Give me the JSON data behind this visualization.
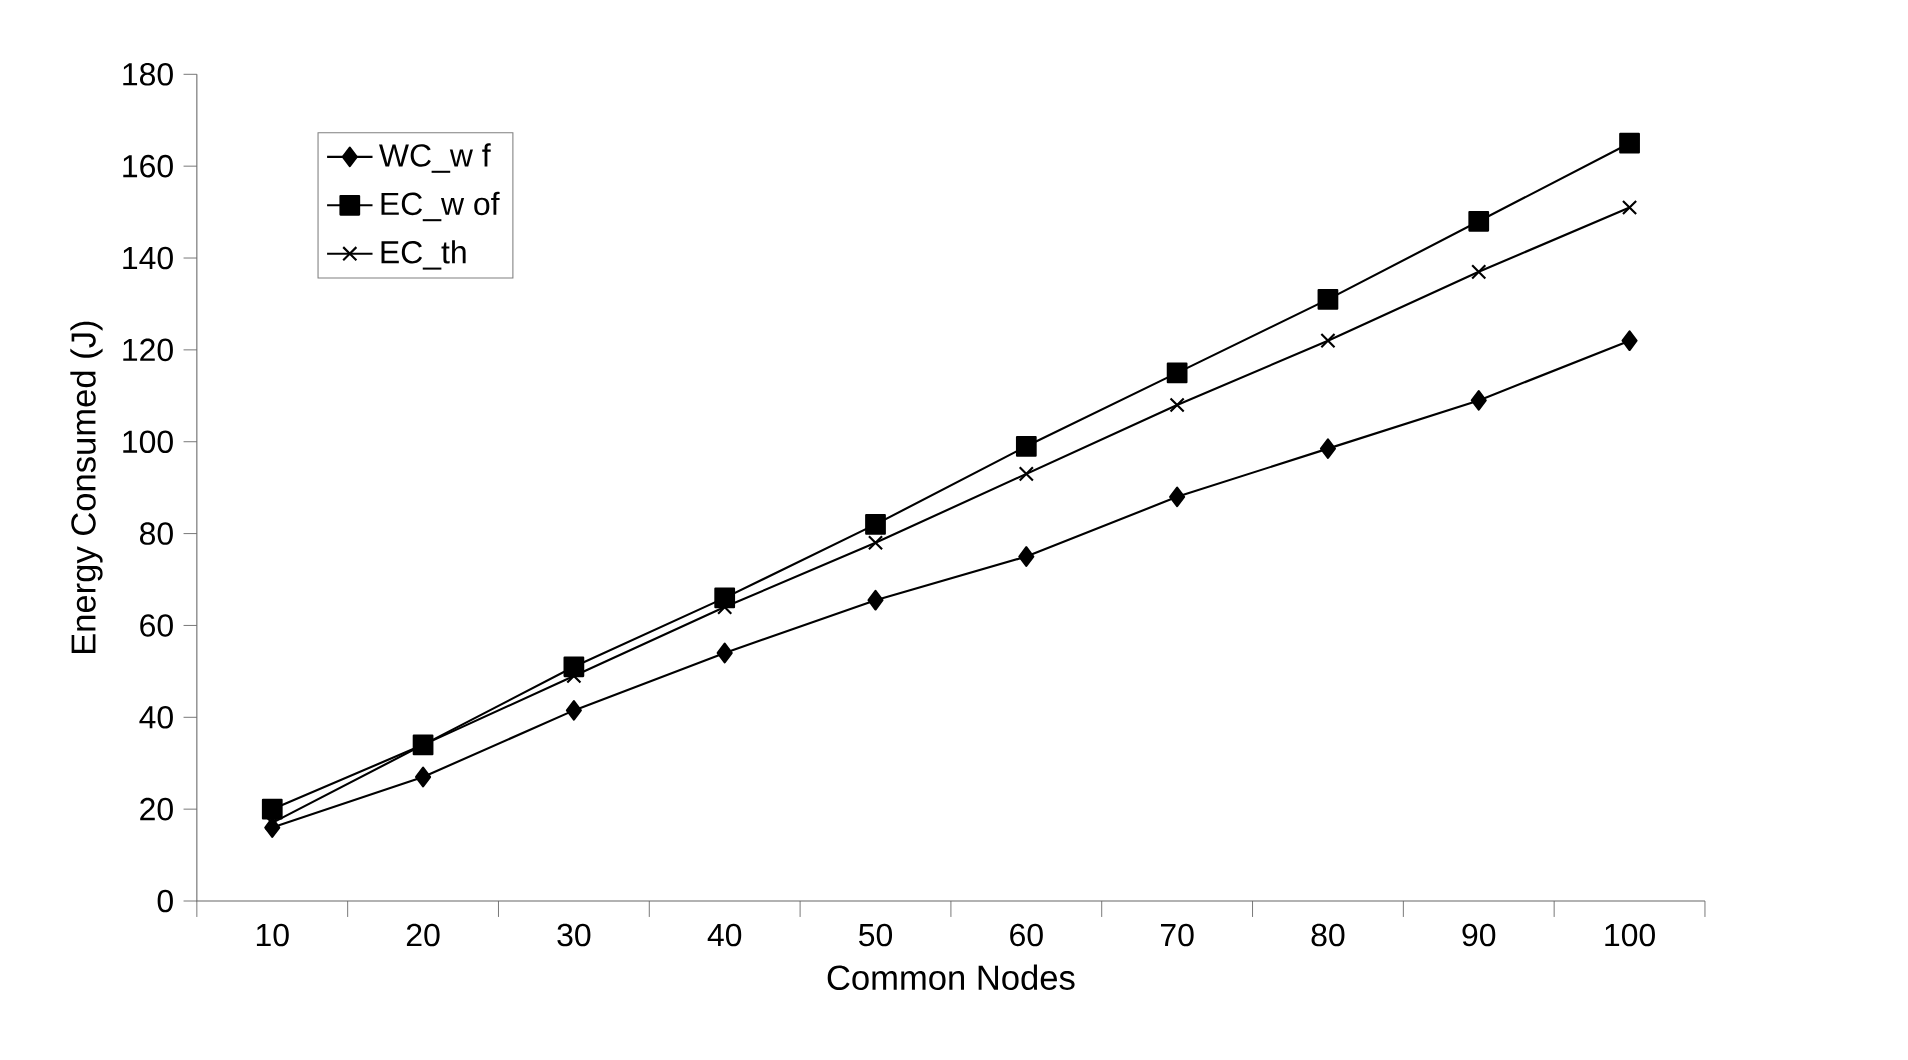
{
  "chart_data": {
    "type": "line",
    "xlabel": "Common Nodes",
    "ylabel": "Energy Consumed (J)",
    "categories": [
      "10",
      "20",
      "30",
      "40",
      "50",
      "60",
      "70",
      "80",
      "90",
      "100"
    ],
    "ylim": [
      0,
      180
    ],
    "yticks": [
      0,
      20,
      40,
      60,
      80,
      100,
      120,
      140,
      160,
      180
    ],
    "grid": false,
    "legend": "top left",
    "line_style": "solid",
    "series": [
      {
        "name": "WC_w f",
        "color": "#000000",
        "marker": "diamond",
        "values": [
          16,
          27,
          41.5,
          54,
          65.5,
          75,
          88,
          98.5,
          109,
          122
        ]
      },
      {
        "name": "EC_w of",
        "color": "#000000",
        "marker": "square",
        "values": [
          20,
          34,
          51,
          66,
          82,
          99,
          115,
          131,
          148,
          165
        ]
      },
      {
        "name": "EC_th",
        "color": "#000000",
        "marker": "cross",
        "values": [
          17,
          34,
          49,
          64,
          78,
          93,
          108,
          122,
          137,
          151
        ]
      }
    ]
  }
}
